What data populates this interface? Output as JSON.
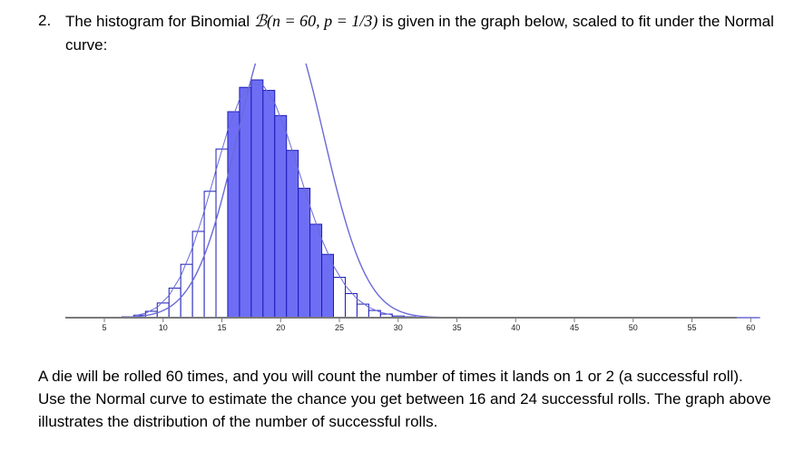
{
  "question": {
    "number": "2.",
    "text_before": "The histogram for Binomial ",
    "math": "ℬ(n = 60,  p = 1/3)",
    "text_after": " is given in the graph below, scaled to fit under the Normal curve:"
  },
  "chart_data": {
    "type": "bar",
    "title": "",
    "xlabel": "",
    "ylabel": "",
    "n": 60,
    "p": 0.3333,
    "xlim": [
      3,
      61
    ],
    "xticks": [
      5,
      10,
      15,
      20,
      25,
      30,
      35,
      40,
      45,
      50,
      55,
      60
    ],
    "highlight_range": [
      16,
      24
    ],
    "colors": {
      "highlight_fill": "#6e6ef5",
      "outline": "#1c1cb8",
      "axis": "#7a7a7a",
      "curve": "#6a6ad8"
    },
    "x": [
      6,
      7,
      8,
      9,
      10,
      11,
      12,
      13,
      14,
      15,
      16,
      17,
      18,
      19,
      20,
      21,
      22,
      23,
      24,
      25,
      26,
      27,
      28,
      29,
      30,
      31,
      32,
      33,
      34,
      35
    ],
    "values": [
      0.0001,
      0.0003,
      0.0009,
      0.0023,
      0.0053,
      0.0107,
      0.0193,
      0.0312,
      0.0457,
      0.061,
      0.0745,
      0.0833,
      0.086,
      0.0822,
      0.0731,
      0.0605,
      0.0468,
      0.0338,
      0.0229,
      0.0146,
      0.0087,
      0.0049,
      0.0026,
      0.0013,
      0.0006,
      0.0003,
      0.0001,
      5e-05,
      2e-05,
      1e-05
    ]
  },
  "paragraph": "A die will be rolled 60 times, and you will count the number of times it lands on 1 or 2 (a successful roll). Use the Normal curve to estimate the chance you get between 16 and 24 successful rolls. The graph above illustrates the distribution of the number of successful rolls."
}
